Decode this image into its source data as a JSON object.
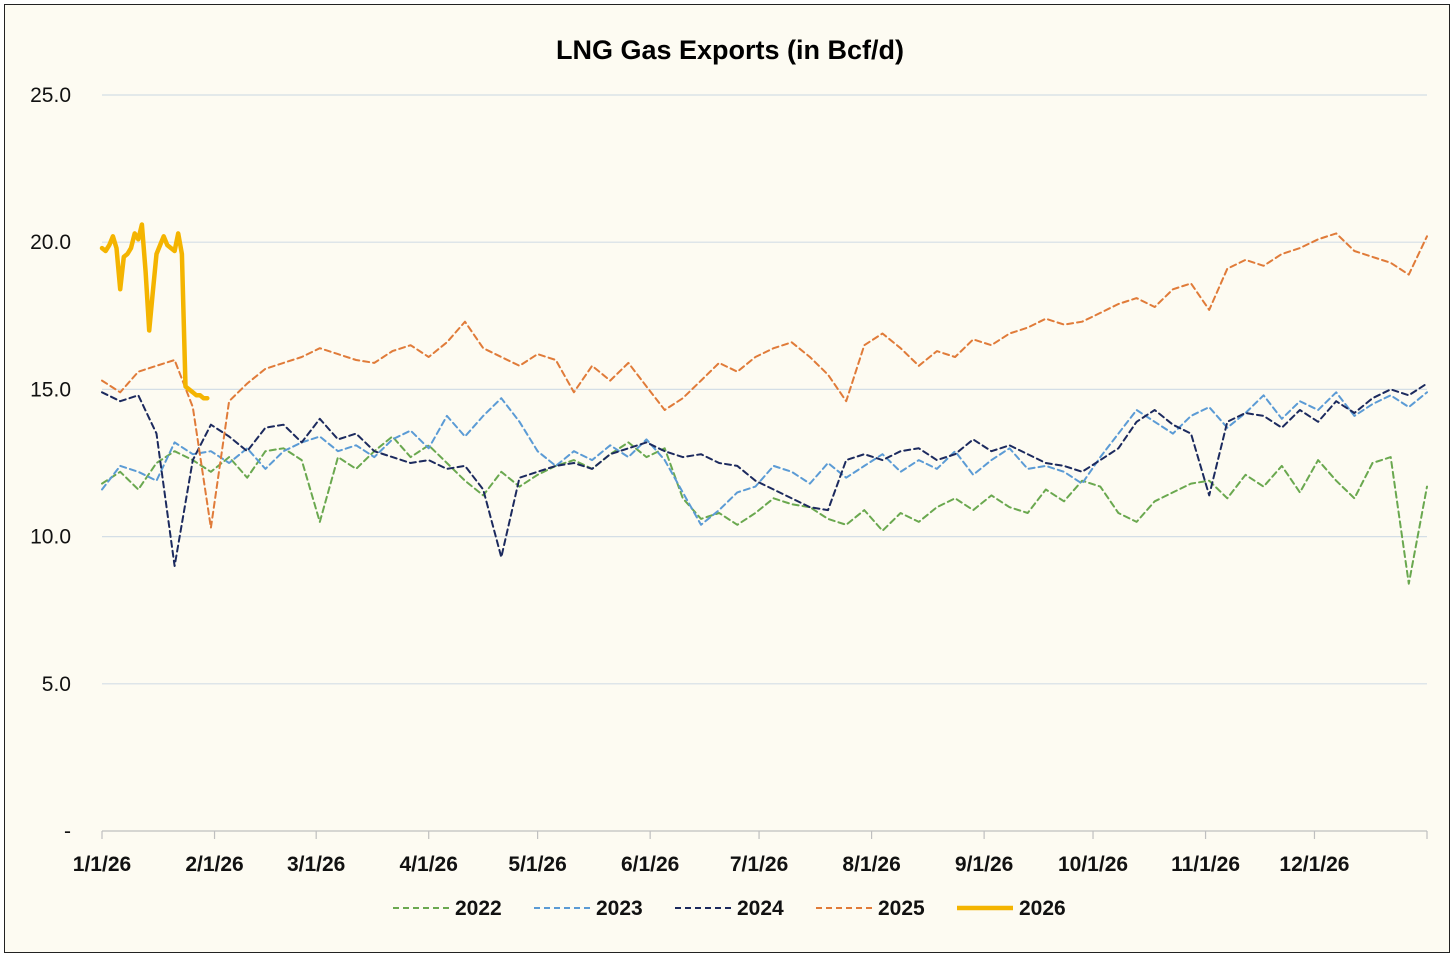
{
  "chart_data": {
    "type": "line",
    "title": "LNG Gas Exports (in Bcf/d)",
    "xlabel": "",
    "ylabel": "",
    "ylim": [
      0,
      25
    ],
    "y_ticks": [
      {
        "value": 0,
        "label": "-"
      },
      {
        "value": 5,
        "label": "5.0"
      },
      {
        "value": 10,
        "label": "10.0"
      },
      {
        "value": 15,
        "label": "15.0"
      },
      {
        "value": 20,
        "label": "20.0"
      },
      {
        "value": 25,
        "label": "25.0"
      }
    ],
    "x_domain_days": [
      0,
      365
    ],
    "x_ticks": [
      {
        "day": 0,
        "label": "1/1/26"
      },
      {
        "day": 31,
        "label": "2/1/26"
      },
      {
        "day": 59,
        "label": "3/1/26"
      },
      {
        "day": 90,
        "label": "4/1/26"
      },
      {
        "day": 120,
        "label": "5/1/26"
      },
      {
        "day": 151,
        "label": "6/1/26"
      },
      {
        "day": 181,
        "label": "7/1/26"
      },
      {
        "day": 212,
        "label": "8/1/26"
      },
      {
        "day": 243,
        "label": "9/1/26"
      },
      {
        "day": 273,
        "label": "10/1/26"
      },
      {
        "day": 304,
        "label": "11/1/26"
      },
      {
        "day": 334,
        "label": "12/1/26"
      }
    ],
    "gridlines": "horizontal",
    "legend_position": "bottom",
    "series": [
      {
        "name": "2022",
        "color": "#6aa84f",
        "style": "dashed",
        "days": [
          0,
          5,
          10,
          15,
          20,
          25,
          30,
          35,
          40,
          45,
          50,
          55,
          60,
          65,
          70,
          75,
          80,
          85,
          90,
          95,
          100,
          105,
          110,
          115,
          120,
          125,
          130,
          135,
          140,
          145,
          150,
          155,
          160,
          165,
          170,
          175,
          180,
          185,
          190,
          195,
          200,
          205,
          210,
          215,
          220,
          225,
          230,
          235,
          240,
          245,
          250,
          255,
          260,
          265,
          270,
          275,
          280,
          285,
          290,
          295,
          300,
          305,
          310,
          315,
          320,
          325,
          330,
          335,
          340,
          345,
          350,
          355,
          360,
          365
        ],
        "values": [
          11.8,
          12.2,
          11.6,
          12.5,
          12.9,
          12.6,
          12.2,
          12.7,
          12.0,
          12.9,
          13.0,
          12.6,
          10.5,
          12.7,
          12.3,
          12.9,
          13.4,
          12.7,
          13.1,
          12.5,
          11.9,
          11.4,
          12.2,
          11.7,
          12.1,
          12.4,
          12.6,
          12.3,
          12.8,
          13.2,
          12.7,
          13.0,
          11.3,
          10.6,
          10.8,
          10.4,
          10.8,
          11.3,
          11.1,
          11.0,
          10.6,
          10.4,
          10.9,
          10.2,
          10.8,
          10.5,
          11.0,
          11.3,
          10.9,
          11.4,
          11.0,
          10.8,
          11.6,
          11.2,
          11.9,
          11.7,
          10.8,
          10.5,
          11.2,
          11.5,
          11.8,
          11.9,
          11.3,
          12.1,
          11.7,
          12.4,
          11.5,
          12.6,
          11.9,
          11.3,
          12.5,
          12.7,
          8.4,
          11.7
        ]
      },
      {
        "name": "2023",
        "color": "#5b9bd5",
        "style": "dashed",
        "days": [
          0,
          5,
          10,
          15,
          20,
          25,
          30,
          35,
          40,
          45,
          50,
          55,
          60,
          65,
          70,
          75,
          80,
          85,
          90,
          95,
          100,
          105,
          110,
          115,
          120,
          125,
          130,
          135,
          140,
          145,
          150,
          155,
          160,
          165,
          170,
          175,
          180,
          185,
          190,
          195,
          200,
          205,
          210,
          215,
          220,
          225,
          230,
          235,
          240,
          245,
          250,
          255,
          260,
          265,
          270,
          275,
          280,
          285,
          290,
          295,
          300,
          305,
          310,
          315,
          320,
          325,
          330,
          335,
          340,
          345,
          350,
          355,
          360,
          365
        ],
        "values": [
          11.6,
          12.4,
          12.2,
          11.9,
          13.2,
          12.8,
          12.9,
          12.5,
          13.0,
          12.3,
          12.9,
          13.2,
          13.4,
          12.9,
          13.1,
          12.7,
          13.3,
          13.6,
          13.0,
          14.1,
          13.4,
          14.1,
          14.7,
          13.9,
          12.9,
          12.4,
          12.9,
          12.6,
          13.1,
          12.7,
          13.3,
          12.6,
          11.5,
          10.4,
          10.9,
          11.5,
          11.7,
          12.4,
          12.2,
          11.8,
          12.5,
          12.0,
          12.4,
          12.8,
          12.2,
          12.6,
          12.3,
          12.9,
          12.1,
          12.6,
          13.0,
          12.3,
          12.4,
          12.2,
          11.8,
          12.7,
          13.5,
          14.3,
          13.9,
          13.5,
          14.1,
          14.4,
          13.7,
          14.2,
          14.8,
          14.0,
          14.6,
          14.3,
          14.9,
          14.1,
          14.5,
          14.8,
          14.4,
          14.9
        ]
      },
      {
        "name": "2024",
        "color": "#1c2a5e",
        "style": "dashed",
        "days": [
          0,
          5,
          10,
          15,
          20,
          25,
          30,
          35,
          40,
          45,
          50,
          55,
          60,
          65,
          70,
          75,
          80,
          85,
          90,
          95,
          100,
          105,
          110,
          115,
          120,
          125,
          130,
          135,
          140,
          145,
          150,
          155,
          160,
          165,
          170,
          175,
          180,
          185,
          190,
          195,
          200,
          205,
          210,
          215,
          220,
          225,
          230,
          235,
          240,
          245,
          250,
          255,
          260,
          265,
          270,
          275,
          280,
          285,
          290,
          295,
          300,
          305,
          310,
          315,
          320,
          325,
          330,
          335,
          340,
          345,
          350,
          355,
          360,
          365
        ],
        "values": [
          14.9,
          14.6,
          14.8,
          13.5,
          9.0,
          12.6,
          13.8,
          13.4,
          12.9,
          13.7,
          13.8,
          13.2,
          14.0,
          13.3,
          13.5,
          12.9,
          12.7,
          12.5,
          12.6,
          12.3,
          12.4,
          11.6,
          9.3,
          12.0,
          12.2,
          12.4,
          12.5,
          12.3,
          12.8,
          13.0,
          13.2,
          12.9,
          12.7,
          12.8,
          12.5,
          12.4,
          11.9,
          11.6,
          11.3,
          11.0,
          10.9,
          12.6,
          12.8,
          12.6,
          12.9,
          13.0,
          12.6,
          12.8,
          13.3,
          12.9,
          13.1,
          12.8,
          12.5,
          12.4,
          12.2,
          12.6,
          13.0,
          13.9,
          14.3,
          13.8,
          13.5,
          11.4,
          13.9,
          14.2,
          14.1,
          13.7,
          14.3,
          13.9,
          14.6,
          14.2,
          14.7,
          15.0,
          14.8,
          15.2
        ]
      },
      {
        "name": "2025",
        "color": "#e07b39",
        "style": "dashed",
        "days": [
          0,
          5,
          10,
          15,
          20,
          25,
          30,
          35,
          40,
          45,
          50,
          55,
          60,
          65,
          70,
          75,
          80,
          85,
          90,
          95,
          100,
          105,
          110,
          115,
          120,
          125,
          130,
          135,
          140,
          145,
          150,
          155,
          160,
          165,
          170,
          175,
          180,
          185,
          190,
          195,
          200,
          205,
          210,
          215,
          220,
          225,
          230,
          235,
          240,
          245,
          250,
          255,
          260,
          265,
          270,
          275,
          280,
          285,
          290,
          295,
          300,
          305,
          310,
          315,
          320,
          325,
          330,
          335,
          340,
          345,
          350,
          355,
          360,
          365
        ],
        "values": [
          15.3,
          14.9,
          15.6,
          15.8,
          16.0,
          14.4,
          10.3,
          14.6,
          15.2,
          15.7,
          15.9,
          16.1,
          16.4,
          16.2,
          16.0,
          15.9,
          16.3,
          16.5,
          16.1,
          16.6,
          17.3,
          16.4,
          16.1,
          15.8,
          16.2,
          16.0,
          14.9,
          15.8,
          15.3,
          15.9,
          15.1,
          14.3,
          14.7,
          15.3,
          15.9,
          15.6,
          16.1,
          16.4,
          16.6,
          16.1,
          15.5,
          14.6,
          16.5,
          16.9,
          16.4,
          15.8,
          16.3,
          16.1,
          16.7,
          16.5,
          16.9,
          17.1,
          17.4,
          17.2,
          17.3,
          17.6,
          17.9,
          18.1,
          17.8,
          18.4,
          18.6,
          17.7,
          19.1,
          19.4,
          19.2,
          19.6,
          19.8,
          20.1,
          20.3,
          19.7,
          19.5,
          19.3,
          18.9,
          20.2
        ]
      },
      {
        "name": "2026",
        "color": "#f4b400",
        "style": "solid",
        "days": [
          0,
          1,
          2,
          3,
          4,
          5,
          6,
          7,
          8,
          9,
          10,
          11,
          12,
          13,
          14,
          15,
          16,
          17,
          18,
          19,
          20,
          21,
          22,
          23,
          24,
          25,
          26,
          27,
          28,
          29
        ],
        "values": [
          19.8,
          19.7,
          19.9,
          20.2,
          19.8,
          18.4,
          19.5,
          19.6,
          19.8,
          20.3,
          20.1,
          20.6,
          19.0,
          17.0,
          18.3,
          19.6,
          19.9,
          20.2,
          19.9,
          19.8,
          19.7,
          20.3,
          19.6,
          15.1,
          15.0,
          14.9,
          14.8,
          14.8,
          14.7,
          14.7
        ]
      }
    ]
  }
}
